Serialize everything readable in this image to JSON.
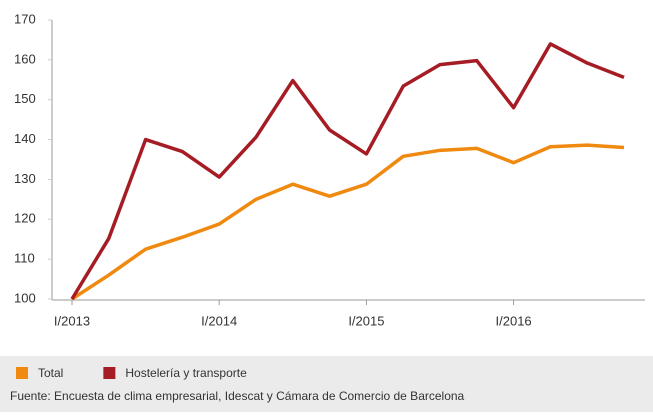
{
  "chart_data": {
    "type": "line",
    "categories": [
      "I/2013",
      null,
      null,
      null,
      "I/2014",
      null,
      null,
      null,
      "I/2015",
      null,
      null,
      null,
      "I/2016",
      null,
      null,
      null
    ],
    "series": [
      {
        "name": "Total",
        "color": "#f0890f",
        "values": [
          100,
          106,
          112.5,
          115.5,
          118.8,
          125,
          128.8,
          125.8,
          128.8,
          135.8,
          137.3,
          137.8,
          134.2,
          138.2,
          138.6,
          138
        ]
      },
      {
        "name": "Hostelería y transporte",
        "color": "#a51c24",
        "values": [
          100,
          115.2,
          140,
          137,
          130.6,
          140.6,
          154.8,
          142.4,
          136.4,
          153.4,
          158.8,
          159.8,
          148,
          164,
          159.2,
          155.6
        ]
      }
    ],
    "ylim": [
      100,
      170
    ],
    "yticks": [
      100,
      110,
      120,
      130,
      140,
      150,
      160,
      170
    ],
    "grid": false,
    "source": "Fuente: Encuesta de clima empresarial, Idescat y Cámara de Comercio de Barcelona"
  }
}
